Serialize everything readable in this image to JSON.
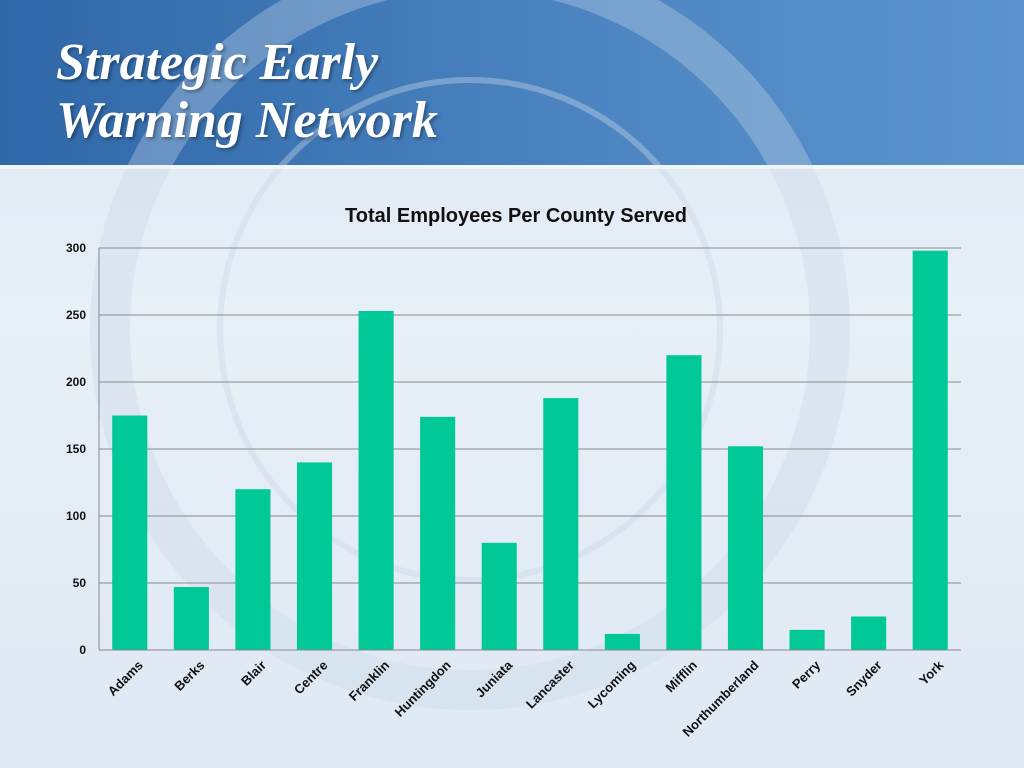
{
  "slide": {
    "title_line1": "Strategic Early",
    "title_line2": "Warning Network"
  },
  "colors": {
    "header_band": "#3f78b8",
    "bar": "#00c896",
    "gridline": "#8a8a8a"
  },
  "chart_data": {
    "type": "bar",
    "title": "Total Employees Per County Served",
    "xlabel": "",
    "ylabel": "",
    "ylim": [
      0,
      300
    ],
    "yticks": [
      0,
      50,
      100,
      150,
      200,
      250,
      300
    ],
    "grid": true,
    "legend": "none",
    "categories": [
      "Adams",
      "Berks",
      "Blair",
      "Centre",
      "Franklin",
      "Huntingdon",
      "Juniata",
      "Lancaster",
      "Lycoming",
      "Mifflin",
      "Northumberland",
      "Perry",
      "Snyder",
      "York"
    ],
    "values": [
      175,
      47,
      120,
      140,
      253,
      174,
      80,
      188,
      12,
      220,
      152,
      15,
      25,
      298
    ]
  }
}
